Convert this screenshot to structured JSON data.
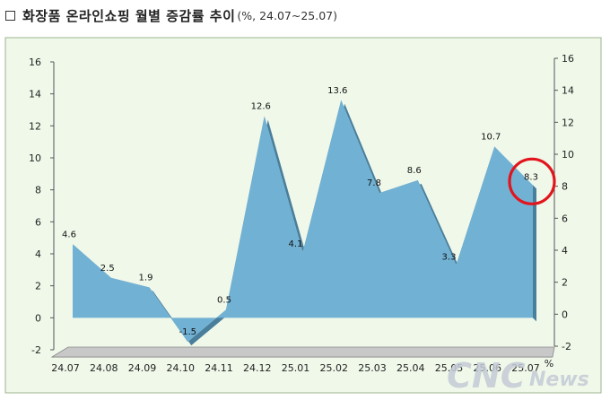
{
  "title": {
    "main": "화장품 온라인쇼핑 월별 증감률 추이",
    "sub": "(%, 24.07~25.07)"
  },
  "chart_data": {
    "type": "area",
    "title": "화장품 온라인쇼핑 월별 증감률 추이",
    "subtitle": "(%, 24.07~25.07)",
    "categories": [
      "24.07",
      "24.08",
      "24.09",
      "24.10",
      "24.11",
      "24.12",
      "25.01",
      "25.02",
      "25.03",
      "25.04",
      "25.05",
      "25.06",
      "25.07"
    ],
    "values": [
      4.6,
      2.5,
      1.9,
      -1.5,
      0.5,
      12.6,
      4.1,
      13.6,
      7.8,
      8.6,
      3.3,
      10.7,
      8.3
    ],
    "data_labels": [
      "4.6",
      "2.5",
      "1.9",
      "-1.5",
      "0.5",
      "12.6",
      "4.1",
      "13.6",
      "7.8",
      "8.6",
      "3.3",
      "10.7",
      "8.3"
    ],
    "y_ticks_left": [
      "16",
      "14",
      "12",
      "10",
      "8",
      "6",
      "4",
      "2",
      "0",
      "-2"
    ],
    "y_ticks_right": [
      "16",
      "14",
      "12",
      "10",
      "8",
      "6",
      "4",
      "2",
      "0",
      "-2"
    ],
    "x_unit_label": "%",
    "ylim": [
      -2,
      16
    ],
    "grid": false,
    "highlight_index": 12,
    "colors": {
      "plot_background": "#f0f8ea",
      "area_fill": "#71b1d4",
      "area_edge": "#4a7f9c",
      "floor": "#c8c8c8",
      "highlight_circle": "#e2141c"
    }
  },
  "watermark": {
    "brand": "CNC",
    "suffix": "News"
  }
}
